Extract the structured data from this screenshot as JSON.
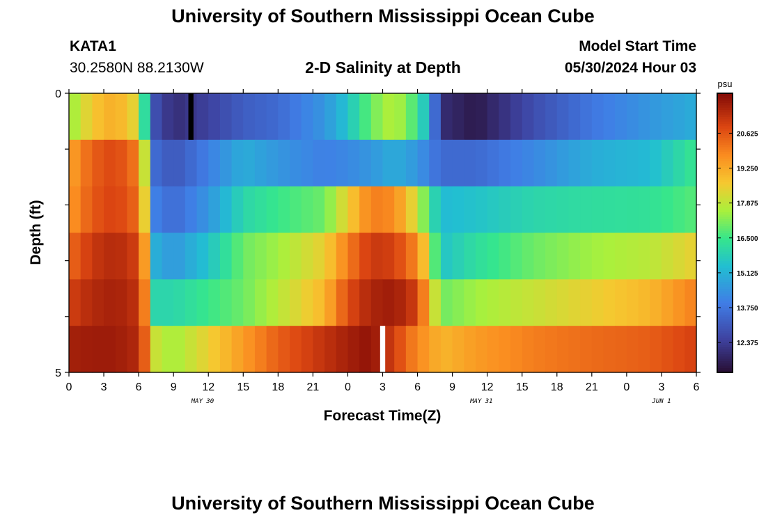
{
  "header": {
    "title": "University of Southern Mississippi Ocean Cube",
    "station": "KATA1",
    "coords": "30.2580N  88.2130W",
    "subtitle": "2-D Salinity at Depth",
    "model_start_label": "Model Start Time",
    "model_start_value": "05/30/2024 Hour 03",
    "footer_title": "University of Southern Mississippi Ocean Cube"
  },
  "chart_data": {
    "type": "heatmap",
    "title": "2-D Salinity at Depth",
    "xlabel": "Forecast Time(Z)",
    "ylabel": "Depth (ft)",
    "x_tick_labels": [
      "0",
      "3",
      "6",
      "9",
      "12",
      "15",
      "18",
      "21",
      "0",
      "3",
      "6",
      "9",
      "12",
      "15",
      "18",
      "21",
      "0",
      "3",
      "6"
    ],
    "date_labels": [
      {
        "label": "MAY 30",
        "hour": 11.5
      },
      {
        "label": "MAY 31",
        "hour": 35.5
      },
      {
        "label": "JUN 1",
        "hour": 51
      }
    ],
    "x_range_hours": [
      0,
      54
    ],
    "y_range_ft": [
      0,
      5
    ],
    "y_tick_labels": [
      "0",
      "5"
    ],
    "depth_bins": 6,
    "colorbar": {
      "unit": "psu",
      "range": [
        11.2,
        22.2
      ],
      "tick_values": [
        12.375,
        13.75,
        15.125,
        16.5,
        17.875,
        19.25,
        20.625
      ],
      "tick_labels": [
        "12.375",
        "13.750",
        "15.125",
        "16.500",
        "17.875",
        "19.250",
        "20.625"
      ]
    },
    "missing_marks": [
      {
        "hour": 10.5,
        "row": 0,
        "color": "#000000"
      },
      {
        "hour": 27,
        "row": 5,
        "color": "#ffffff"
      }
    ],
    "key_hours": [
      0,
      2,
      4,
      6,
      6.5,
      7.5,
      9,
      12,
      15,
      18,
      22,
      24,
      26,
      28,
      30,
      31,
      32,
      35,
      40,
      45,
      50,
      54
    ],
    "key_values": [
      [
        17.3,
        18.7,
        19.2,
        18.2,
        16.2,
        12.8,
        12.0,
        12.5,
        13.2,
        13.5,
        14.5,
        15.5,
        17.0,
        17.8,
        16.5,
        15.0,
        12.0,
        11.5,
        12.8,
        13.8,
        14.5,
        15.0
      ],
      [
        19.3,
        20.5,
        20.9,
        20.0,
        18.0,
        13.5,
        13.0,
        14.0,
        15.0,
        14.5,
        14.0,
        14.2,
        14.5,
        15.0,
        14.5,
        14.0,
        13.5,
        13.5,
        14.2,
        15.0,
        15.3,
        16.5
      ],
      [
        19.5,
        20.6,
        21.0,
        20.3,
        18.5,
        14.0,
        13.5,
        14.5,
        16.0,
        16.5,
        17.0,
        18.5,
        20.0,
        19.8,
        18.0,
        16.5,
        15.3,
        15.5,
        16.0,
        16.2,
        16.3,
        16.8
      ],
      [
        20.3,
        21.2,
        21.5,
        21.0,
        19.5,
        15.0,
        14.5,
        15.5,
        17.0,
        17.5,
        18.5,
        20.0,
        21.2,
        21.0,
        19.8,
        18.0,
        15.5,
        16.2,
        17.0,
        17.5,
        17.8,
        18.5
      ],
      [
        21.0,
        21.5,
        21.7,
        21.3,
        20.0,
        16.0,
        16.0,
        16.5,
        17.0,
        17.8,
        19.0,
        20.8,
        21.6,
        21.8,
        21.0,
        19.0,
        17.0,
        17.5,
        18.0,
        18.5,
        19.0,
        20.0
      ],
      [
        21.7,
        21.8,
        21.8,
        21.5,
        20.5,
        18.0,
        17.5,
        18.5,
        19.5,
        20.5,
        21.3,
        21.7,
        22.0,
        21.0,
        19.8,
        19.5,
        19.0,
        19.5,
        20.0,
        20.3,
        20.5,
        21.0
      ]
    ]
  }
}
